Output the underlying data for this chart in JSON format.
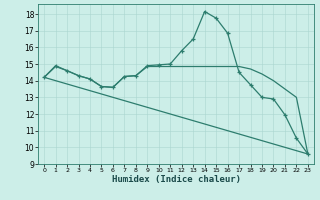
{
  "xlabel": "Humidex (Indice chaleur)",
  "background_color": "#cceee8",
  "line_color": "#2d7d6e",
  "xlim": [
    -0.5,
    23.5
  ],
  "ylim": [
    9,
    18.6
  ],
  "yticks": [
    9,
    10,
    11,
    12,
    13,
    14,
    15,
    16,
    17,
    18
  ],
  "xticks": [
    0,
    1,
    2,
    3,
    4,
    5,
    6,
    7,
    8,
    9,
    10,
    11,
    12,
    13,
    14,
    15,
    16,
    17,
    18,
    19,
    20,
    21,
    22,
    23
  ],
  "curve1_x": [
    0,
    1,
    2,
    3,
    4,
    5,
    6,
    7,
    8,
    9,
    10,
    11,
    12,
    13,
    14,
    15,
    16,
    17,
    18,
    19,
    20,
    21,
    22,
    23
  ],
  "curve1_y": [
    14.2,
    14.9,
    14.6,
    14.3,
    14.1,
    13.65,
    13.6,
    14.25,
    14.3,
    14.9,
    14.95,
    15.0,
    15.8,
    16.5,
    18.15,
    17.75,
    16.85,
    14.5,
    13.75,
    13.0,
    12.9,
    11.95,
    10.55,
    9.6
  ],
  "curve2_x": [
    0,
    23
  ],
  "curve2_y": [
    14.2,
    9.6
  ],
  "curve3_x": [
    0,
    1,
    2,
    3,
    4,
    5,
    6,
    7,
    8,
    9,
    10,
    11,
    12,
    13,
    14,
    15,
    16,
    17,
    18,
    19,
    20,
    21,
    22,
    23
  ],
  "curve3_y": [
    14.2,
    14.85,
    14.6,
    14.3,
    14.1,
    13.65,
    13.6,
    14.25,
    14.3,
    14.85,
    14.85,
    14.85,
    14.85,
    14.85,
    14.85,
    14.85,
    14.85,
    14.85,
    14.7,
    14.4,
    14.0,
    13.5,
    13.0,
    9.6
  ]
}
